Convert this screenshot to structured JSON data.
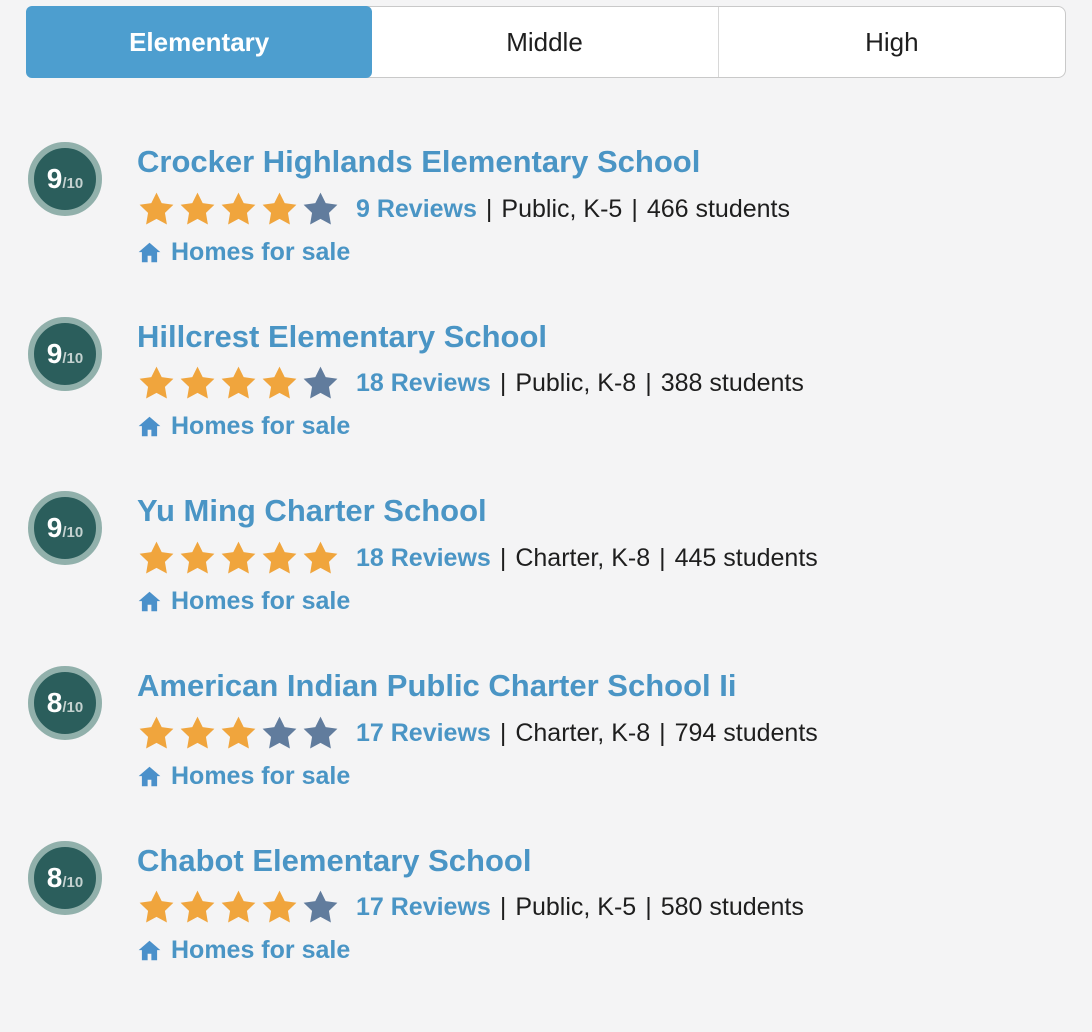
{
  "tabs": [
    {
      "label": "Elementary",
      "active": true
    },
    {
      "label": "Middle",
      "active": false
    },
    {
      "label": "High",
      "active": false
    }
  ],
  "meta_separator": "|",
  "schools": [
    {
      "rating": "9",
      "rating_denominator": "/10",
      "name": "Crocker Highlands Elementary School",
      "stars_filled": 4,
      "stars_total": 5,
      "reviews": "9 Reviews",
      "type_grades": "Public, K-5",
      "students": "466 students",
      "homes_link": "Homes for sale"
    },
    {
      "rating": "9",
      "rating_denominator": "/10",
      "name": "Hillcrest Elementary School",
      "stars_filled": 4,
      "stars_total": 5,
      "reviews": "18 Reviews",
      "type_grades": "Public, K-8",
      "students": "388 students",
      "homes_link": "Homes for sale"
    },
    {
      "rating": "9",
      "rating_denominator": "/10",
      "name": "Yu Ming Charter School",
      "stars_filled": 5,
      "stars_total": 5,
      "reviews": "18 Reviews",
      "type_grades": "Charter, K-8",
      "students": "445 students",
      "homes_link": "Homes for sale"
    },
    {
      "rating": "8",
      "rating_denominator": "/10",
      "name": "American Indian Public Charter School Ii",
      "stars_filled": 3,
      "stars_total": 5,
      "reviews": "17 Reviews",
      "type_grades": "Charter, K-8",
      "students": "794 students",
      "homes_link": "Homes for sale"
    },
    {
      "rating": "8",
      "rating_denominator": "/10",
      "name": "Chabot Elementary School",
      "stars_filled": 4,
      "stars_total": 5,
      "reviews": "17 Reviews",
      "type_grades": "Public, K-5",
      "students": "580 students",
      "homes_link": "Homes for sale"
    }
  ],
  "colors": {
    "accent_blue": "#4d9ecf",
    "link_blue": "#4a95c5",
    "star_filled": "#f0a53d",
    "star_empty": "#617c9d",
    "badge_bg": "#2b5e5c",
    "badge_ring": "#91b0ab",
    "home_icon_blue": "#4a90ca",
    "text_dark": "#1e1e1e",
    "page_bg": "#f4f4f5"
  }
}
